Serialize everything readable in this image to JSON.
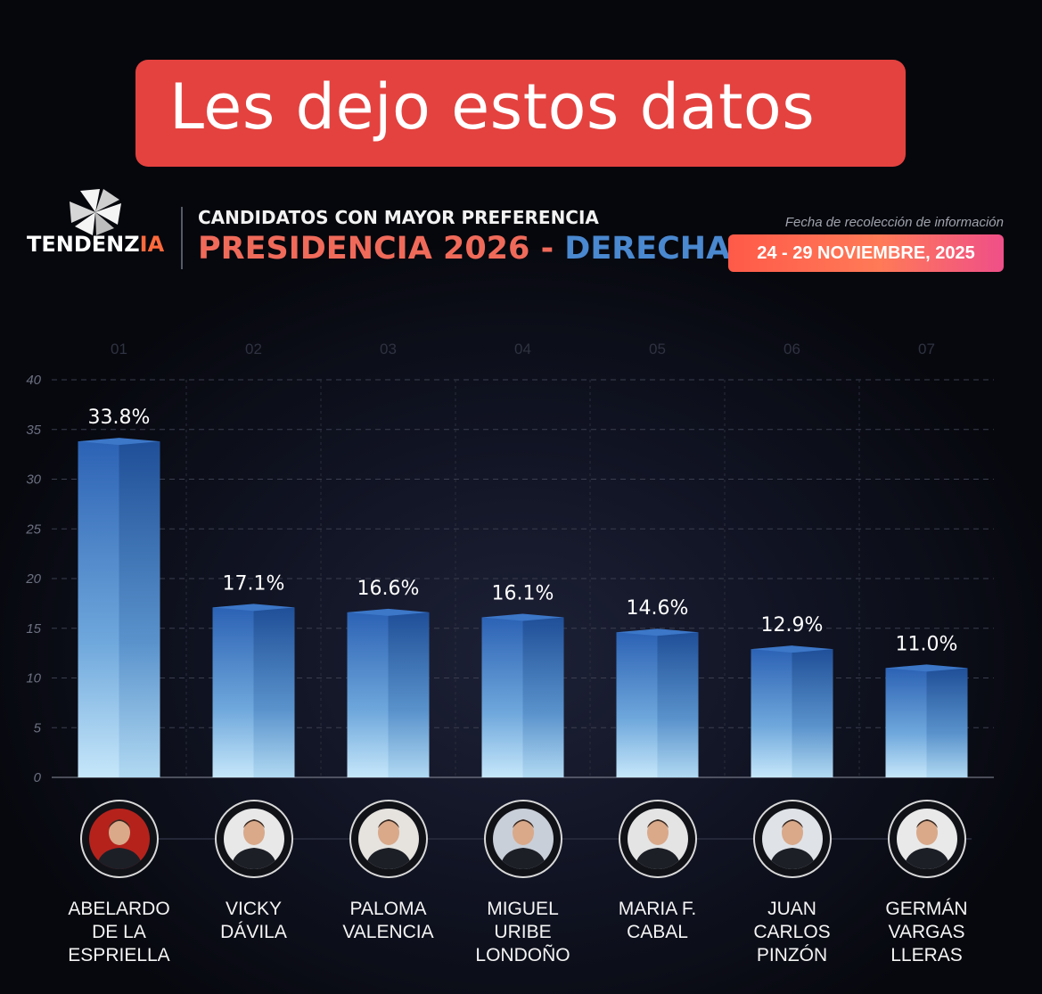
{
  "banner": {
    "text": "Les dejo estos datos"
  },
  "brand": {
    "name_part1": "TENDENZ",
    "name_part2": "IA"
  },
  "header": {
    "subtitle": "CANDIDATOS CON MAYOR PREFERENCIA",
    "title_part1": "PRESIDENCIA 2026",
    "title_sep": " - ",
    "title_part2": "DERECHA",
    "date_label": "Fecha de recolección de información",
    "date_value": "24 - 29 NOVIEMBRE, 2025"
  },
  "colors": {
    "banner": "#e4423f",
    "bar_top": "#2f66b8",
    "bar_bottom": "#bfe3f8",
    "accent_orange": "#ff6a3d",
    "accent_blue": "#4a88d0"
  },
  "candidates": [
    {
      "index": "01",
      "name_lines": [
        "ABELARDO",
        "DE LA",
        "ESPRIELLA"
      ],
      "value_label": "33.8%",
      "photo_bg": "#b5221c",
      "icon": "person-avatar-icon"
    },
    {
      "index": "02",
      "name_lines": [
        "VICKY",
        "DÁVILA"
      ],
      "value_label": "17.1%",
      "photo_bg": "#e8e8e8",
      "icon": "person-avatar-icon"
    },
    {
      "index": "03",
      "name_lines": [
        "PALOMA",
        "VALENCIA"
      ],
      "value_label": "16.6%",
      "photo_bg": "#e6e3df",
      "icon": "person-avatar-icon"
    },
    {
      "index": "04",
      "name_lines": [
        "MIGUEL",
        "URIBE",
        "LONDOÑO"
      ],
      "value_label": "16.1%",
      "photo_bg": "#c9cfd8",
      "icon": "person-avatar-icon"
    },
    {
      "index": "05",
      "name_lines": [
        "MARIA F.",
        "CABAL"
      ],
      "value_label": "14.6%",
      "photo_bg": "#e4e4e4",
      "icon": "person-avatar-icon"
    },
    {
      "index": "06",
      "name_lines": [
        "JUAN",
        "CARLOS",
        "PINZÓN"
      ],
      "value_label": "12.9%",
      "photo_bg": "#dfe3e8",
      "icon": "person-avatar-icon"
    },
    {
      "index": "07",
      "name_lines": [
        "GERMÁN",
        "VARGAS",
        "LLERAS"
      ],
      "value_label": "11.0%",
      "photo_bg": "#e9e9e9",
      "icon": "person-avatar-icon"
    }
  ],
  "chart_data": {
    "type": "bar",
    "title": "PRESIDENCIA 2026 - DERECHA",
    "categories": [
      "ABELARDO DE LA ESPRIELLA",
      "VICKY DÁVILA",
      "PALOMA VALENCIA",
      "MIGUEL URIBE LONDOÑO",
      "MARIA F. CABAL",
      "JUAN CARLOS PINZÓN",
      "GERMÁN VARGAS LLERAS"
    ],
    "values": [
      33.8,
      17.1,
      16.6,
      16.1,
      14.6,
      12.9,
      11.0
    ],
    "data_labels": [
      "33.8%",
      "17.1%",
      "16.6%",
      "16.1%",
      "14.6%",
      "12.9%",
      "11.0%"
    ],
    "category_index_labels": [
      "01",
      "02",
      "03",
      "04",
      "05",
      "06",
      "07"
    ],
    "yticks": [
      "0",
      "5",
      "10",
      "15",
      "20",
      "25",
      "30",
      "35",
      "40"
    ],
    "ylim": [
      0,
      40
    ],
    "xlabel": "",
    "ylabel": "",
    "grid": true,
    "legend": "none"
  }
}
